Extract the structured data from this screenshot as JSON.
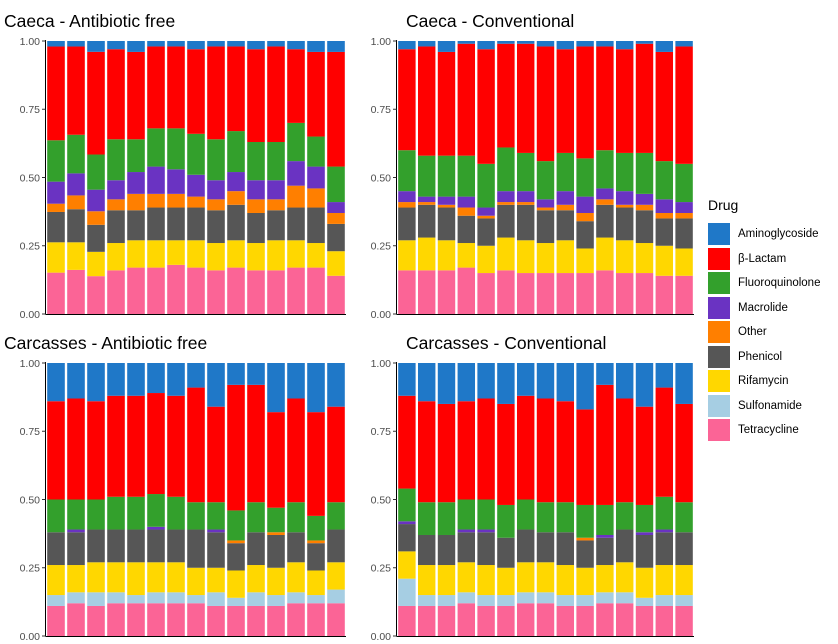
{
  "chart_data": {
    "type": "bar",
    "stacked": true,
    "y_ticks": [
      "0.00",
      "0.25",
      "0.50",
      "0.75",
      "1.00"
    ],
    "ylim": [
      0,
      1
    ],
    "grid": false,
    "legend_position": "right",
    "legend_title": "Drug",
    "drugs": [
      {
        "name": "Aminoglycoside",
        "color": "#1F78C8"
      },
      {
        "name": "β-Lactam",
        "color": "#FF0000"
      },
      {
        "name": "Fluoroquinolone",
        "color": "#33A02C"
      },
      {
        "name": "Macrolide",
        "color": "#6A33C2"
      },
      {
        "name": "Other",
        "color": "#FF7F00"
      },
      {
        "name": "Phenicol",
        "color": "#565656"
      },
      {
        "name": "Rifamycin",
        "color": "#FFD700"
      },
      {
        "name": "Sulfonamide",
        "color": "#A6CEE3"
      },
      {
        "name": "Tetracycline",
        "color": "#FB6496"
      }
    ],
    "stack_order_bottom_to_top": [
      "Tetracycline",
      "Sulfonamide",
      "Rifamycin",
      "Phenicol",
      "Other",
      "Macrolide",
      "Fluoroquinolone",
      "β-Lactam",
      "Aminoglycoside"
    ],
    "panels": [
      {
        "title": "Caeca - Antibiotic free",
        "bars": [
          [
            0.15,
            0.0,
            0.11,
            0.11,
            0.03,
            0.08,
            0.15,
            0.34,
            0.02
          ],
          [
            0.16,
            0.0,
            0.1,
            0.12,
            0.05,
            0.08,
            0.14,
            0.32,
            0.02
          ],
          [
            0.14,
            0.0,
            0.09,
            0.1,
            0.05,
            0.08,
            0.13,
            0.38,
            0.04
          ],
          [
            0.16,
            0.0,
            0.1,
            0.12,
            0.04,
            0.07,
            0.15,
            0.33,
            0.03
          ],
          [
            0.17,
            0.0,
            0.1,
            0.11,
            0.06,
            0.08,
            0.12,
            0.32,
            0.04
          ],
          [
            0.17,
            0.0,
            0.1,
            0.12,
            0.05,
            0.1,
            0.14,
            0.3,
            0.02
          ],
          [
            0.18,
            0.0,
            0.09,
            0.12,
            0.05,
            0.09,
            0.15,
            0.3,
            0.02
          ],
          [
            0.17,
            0.0,
            0.1,
            0.12,
            0.04,
            0.08,
            0.15,
            0.31,
            0.03
          ],
          [
            0.16,
            0.0,
            0.1,
            0.12,
            0.04,
            0.07,
            0.15,
            0.34,
            0.02
          ],
          [
            0.17,
            0.0,
            0.1,
            0.13,
            0.05,
            0.07,
            0.15,
            0.31,
            0.02
          ],
          [
            0.16,
            0.0,
            0.1,
            0.11,
            0.05,
            0.07,
            0.14,
            0.34,
            0.03
          ],
          [
            0.16,
            0.0,
            0.11,
            0.11,
            0.04,
            0.07,
            0.14,
            0.35,
            0.02
          ],
          [
            0.17,
            0.0,
            0.1,
            0.12,
            0.08,
            0.09,
            0.14,
            0.27,
            0.03
          ],
          [
            0.17,
            0.0,
            0.09,
            0.13,
            0.07,
            0.08,
            0.11,
            0.31,
            0.04
          ],
          [
            0.14,
            0.0,
            0.09,
            0.1,
            0.04,
            0.04,
            0.13,
            0.42,
            0.04
          ]
        ]
      },
      {
        "title": "Caeca - Conventional",
        "bars": [
          [
            0.16,
            0.0,
            0.11,
            0.12,
            0.02,
            0.04,
            0.15,
            0.37,
            0.03
          ],
          [
            0.16,
            0.0,
            0.12,
            0.12,
            0.01,
            0.02,
            0.15,
            0.4,
            0.02
          ],
          [
            0.16,
            0.0,
            0.11,
            0.12,
            0.01,
            0.03,
            0.15,
            0.38,
            0.04
          ],
          [
            0.17,
            0.0,
            0.09,
            0.1,
            0.03,
            0.04,
            0.15,
            0.41,
            0.01
          ],
          [
            0.15,
            0.0,
            0.1,
            0.1,
            0.01,
            0.03,
            0.16,
            0.42,
            0.03
          ],
          [
            0.16,
            0.0,
            0.12,
            0.12,
            0.01,
            0.04,
            0.16,
            0.38,
            0.01
          ],
          [
            0.15,
            0.0,
            0.12,
            0.13,
            0.01,
            0.04,
            0.14,
            0.4,
            0.01
          ],
          [
            0.15,
            0.0,
            0.11,
            0.12,
            0.01,
            0.03,
            0.14,
            0.42,
            0.02
          ],
          [
            0.15,
            0.0,
            0.12,
            0.11,
            0.02,
            0.05,
            0.14,
            0.38,
            0.03
          ],
          [
            0.15,
            0.0,
            0.09,
            0.1,
            0.03,
            0.06,
            0.14,
            0.41,
            0.02
          ],
          [
            0.16,
            0.0,
            0.12,
            0.12,
            0.02,
            0.04,
            0.14,
            0.38,
            0.02
          ],
          [
            0.15,
            0.0,
            0.12,
            0.12,
            0.01,
            0.05,
            0.14,
            0.38,
            0.03
          ],
          [
            0.15,
            0.0,
            0.11,
            0.12,
            0.02,
            0.04,
            0.15,
            0.4,
            0.01
          ],
          [
            0.14,
            0.0,
            0.11,
            0.1,
            0.02,
            0.05,
            0.14,
            0.4,
            0.04
          ],
          [
            0.14,
            0.0,
            0.1,
            0.11,
            0.02,
            0.04,
            0.14,
            0.43,
            0.02
          ]
        ]
      },
      {
        "title": "Carcasses - Antibiotic free",
        "bars": [
          [
            0.11,
            0.04,
            0.11,
            0.12,
            0.0,
            0.0,
            0.12,
            0.36,
            0.14
          ],
          [
            0.12,
            0.04,
            0.1,
            0.12,
            0.0,
            0.01,
            0.11,
            0.37,
            0.13
          ],
          [
            0.11,
            0.05,
            0.11,
            0.12,
            0.0,
            0.0,
            0.11,
            0.36,
            0.14
          ],
          [
            0.12,
            0.04,
            0.11,
            0.12,
            0.0,
            0.0,
            0.12,
            0.37,
            0.12
          ],
          [
            0.12,
            0.03,
            0.12,
            0.12,
            0.0,
            0.0,
            0.12,
            0.37,
            0.12
          ],
          [
            0.12,
            0.04,
            0.11,
            0.12,
            0.0,
            0.01,
            0.12,
            0.37,
            0.11
          ],
          [
            0.12,
            0.04,
            0.11,
            0.12,
            0.0,
            0.0,
            0.12,
            0.37,
            0.12
          ],
          [
            0.12,
            0.03,
            0.1,
            0.14,
            0.0,
            0.0,
            0.1,
            0.42,
            0.09
          ],
          [
            0.11,
            0.05,
            0.09,
            0.13,
            0.0,
            0.01,
            0.1,
            0.35,
            0.16
          ],
          [
            0.11,
            0.03,
            0.1,
            0.1,
            0.01,
            0.0,
            0.11,
            0.46,
            0.08
          ],
          [
            0.11,
            0.05,
            0.1,
            0.12,
            0.0,
            0.0,
            0.11,
            0.43,
            0.08
          ],
          [
            0.11,
            0.04,
            0.1,
            0.12,
            0.01,
            0.0,
            0.09,
            0.35,
            0.18
          ],
          [
            0.12,
            0.04,
            0.11,
            0.11,
            0.0,
            0.0,
            0.11,
            0.38,
            0.13
          ],
          [
            0.12,
            0.03,
            0.09,
            0.1,
            0.01,
            0.0,
            0.09,
            0.38,
            0.18
          ],
          [
            0.12,
            0.05,
            0.1,
            0.12,
            0.0,
            0.0,
            0.1,
            0.35,
            0.16
          ]
        ]
      },
      {
        "title": "Carcasses - Conventional",
        "bars": [
          [
            0.11,
            0.1,
            0.1,
            0.1,
            0.0,
            0.01,
            0.12,
            0.34,
            0.12
          ],
          [
            0.11,
            0.04,
            0.11,
            0.11,
            0.0,
            0.0,
            0.12,
            0.37,
            0.14
          ],
          [
            0.11,
            0.04,
            0.11,
            0.11,
            0.0,
            0.0,
            0.12,
            0.36,
            0.15
          ],
          [
            0.12,
            0.04,
            0.11,
            0.11,
            0.0,
            0.01,
            0.11,
            0.36,
            0.14
          ],
          [
            0.11,
            0.04,
            0.11,
            0.12,
            0.0,
            0.01,
            0.11,
            0.37,
            0.13
          ],
          [
            0.11,
            0.04,
            0.1,
            0.11,
            0.0,
            0.0,
            0.12,
            0.37,
            0.15
          ],
          [
            0.12,
            0.04,
            0.11,
            0.12,
            0.0,
            0.0,
            0.11,
            0.38,
            0.12
          ],
          [
            0.12,
            0.04,
            0.11,
            0.11,
            0.0,
            0.0,
            0.11,
            0.38,
            0.13
          ],
          [
            0.11,
            0.04,
            0.11,
            0.12,
            0.0,
            0.0,
            0.11,
            0.37,
            0.14
          ],
          [
            0.11,
            0.04,
            0.1,
            0.1,
            0.01,
            0.0,
            0.12,
            0.35,
            0.17
          ],
          [
            0.12,
            0.04,
            0.1,
            0.1,
            0.0,
            0.01,
            0.11,
            0.44,
            0.08
          ],
          [
            0.12,
            0.04,
            0.11,
            0.12,
            0.0,
            0.0,
            0.1,
            0.38,
            0.13
          ],
          [
            0.11,
            0.03,
            0.11,
            0.12,
            0.0,
            0.01,
            0.1,
            0.36,
            0.16
          ],
          [
            0.11,
            0.04,
            0.11,
            0.12,
            0.0,
            0.01,
            0.12,
            0.4,
            0.09
          ],
          [
            0.11,
            0.04,
            0.11,
            0.12,
            0.0,
            0.0,
            0.11,
            0.36,
            0.15
          ]
        ]
      }
    ]
  }
}
